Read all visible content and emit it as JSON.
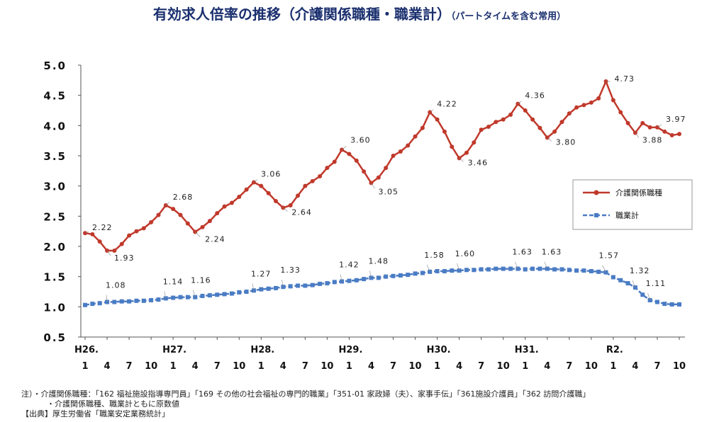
{
  "title": "有効求人倍率の推移（介護関係職種・職業計）",
  "subtitle": "（パートタイムを含む常用）",
  "notes": [
    "注）・介護関係職種：「162 福祉施設指導専門員」「169 その他の社会福祉の専門的職業」「351-01 家政婦（夫）、家事手伝」「361施設介護員」「362 訪問介護職」",
    "・介護関係職種、職業計ともに原数値",
    "【出典】厚生労働省「職業安定業務統計」"
  ],
  "colors": {
    "kaigo": "#c0392b",
    "total": "#4a7cc4",
    "axis": "#555555"
  },
  "chart_data": {
    "type": "line",
    "ylim": [
      0.5,
      5.0
    ],
    "yticks": [
      "5.0",
      "4.5",
      "4.0",
      "3.5",
      "3.0",
      "2.5",
      "2.0",
      "1.5",
      "1.0",
      "0.5"
    ],
    "year_labels": [
      "H26.",
      "H27.",
      "H28.",
      "H29.",
      "H30.",
      "H31.",
      "R2."
    ],
    "month_labels": [
      "1",
      "4",
      "7",
      "10"
    ],
    "legend_position": "right",
    "series": [
      {
        "name": "介護関係職種",
        "values": [
          2.22,
          2.2,
          2.08,
          1.93,
          1.93,
          2.04,
          2.18,
          2.25,
          2.3,
          2.4,
          2.52,
          2.68,
          2.62,
          2.52,
          2.38,
          2.24,
          2.32,
          2.42,
          2.55,
          2.66,
          2.72,
          2.82,
          2.94,
          3.06,
          3.0,
          2.88,
          2.75,
          2.64,
          2.68,
          2.84,
          3.0,
          3.08,
          3.16,
          3.3,
          3.4,
          3.6,
          3.53,
          3.42,
          3.24,
          3.05,
          3.14,
          3.3,
          3.5,
          3.57,
          3.67,
          3.82,
          3.96,
          4.22,
          4.1,
          3.9,
          3.65,
          3.46,
          3.55,
          3.72,
          3.93,
          3.98,
          4.06,
          4.1,
          4.18,
          4.36,
          4.25,
          4.1,
          3.96,
          3.8,
          3.9,
          4.06,
          4.2,
          4.3,
          4.34,
          4.38,
          4.45,
          4.73,
          4.42,
          4.22,
          4.04,
          3.88,
          4.04,
          3.97,
          3.97,
          3.9,
          3.84,
          3.86
        ],
        "labels": [
          {
            "index": 0,
            "text": "2.22"
          },
          {
            "index": 3,
            "text": "1.93"
          },
          {
            "index": 11,
            "text": "2.68"
          },
          {
            "index": 15,
            "text": "2.24"
          },
          {
            "index": 23,
            "text": "3.06"
          },
          {
            "index": 27,
            "text": "2.64"
          },
          {
            "index": 35,
            "text": "3.60"
          },
          {
            "index": 39,
            "text": "3.05"
          },
          {
            "index": 47,
            "text": "4.22"
          },
          {
            "index": 51,
            "text": "3.46"
          },
          {
            "index": 59,
            "text": "4.36"
          },
          {
            "index": 63,
            "text": "3.80"
          },
          {
            "index": 71,
            "text": "4.73"
          },
          {
            "index": 75,
            "text": "3.88"
          },
          {
            "index": 78,
            "text": "3.97"
          }
        ]
      },
      {
        "name": "職業計",
        "values": [
          1.03,
          1.05,
          1.06,
          1.08,
          1.08,
          1.09,
          1.09,
          1.1,
          1.1,
          1.11,
          1.12,
          1.14,
          1.15,
          1.16,
          1.16,
          1.16,
          1.18,
          1.19,
          1.2,
          1.21,
          1.22,
          1.24,
          1.25,
          1.27,
          1.29,
          1.3,
          1.31,
          1.33,
          1.34,
          1.35,
          1.35,
          1.36,
          1.38,
          1.39,
          1.41,
          1.42,
          1.43,
          1.44,
          1.46,
          1.48,
          1.48,
          1.5,
          1.51,
          1.52,
          1.53,
          1.55,
          1.56,
          1.58,
          1.59,
          1.59,
          1.6,
          1.6,
          1.61,
          1.61,
          1.62,
          1.62,
          1.63,
          1.63,
          1.63,
          1.63,
          1.62,
          1.63,
          1.63,
          1.63,
          1.62,
          1.62,
          1.61,
          1.6,
          1.6,
          1.59,
          1.58,
          1.57,
          1.49,
          1.44,
          1.39,
          1.32,
          1.2,
          1.11,
          1.08,
          1.05,
          1.04,
          1.04
        ],
        "labels": [
          {
            "index": 3,
            "text": "1.08"
          },
          {
            "index": 11,
            "text": "1.14"
          },
          {
            "index": 15,
            "text": "1.16"
          },
          {
            "index": 23,
            "text": "1.27"
          },
          {
            "index": 27,
            "text": "1.33"
          },
          {
            "index": 35,
            "text": "1.42"
          },
          {
            "index": 39,
            "text": "1.48"
          },
          {
            "index": 47,
            "text": "1.58"
          },
          {
            "index": 51,
            "text": "1.60"
          },
          {
            "index": 59,
            "text": "1.63"
          },
          {
            "index": 63,
            "text": "1.63"
          },
          {
            "index": 71,
            "text": "1.57"
          },
          {
            "index": 75,
            "text": "1.32"
          },
          {
            "index": 77,
            "text": "1.11"
          }
        ]
      }
    ]
  }
}
